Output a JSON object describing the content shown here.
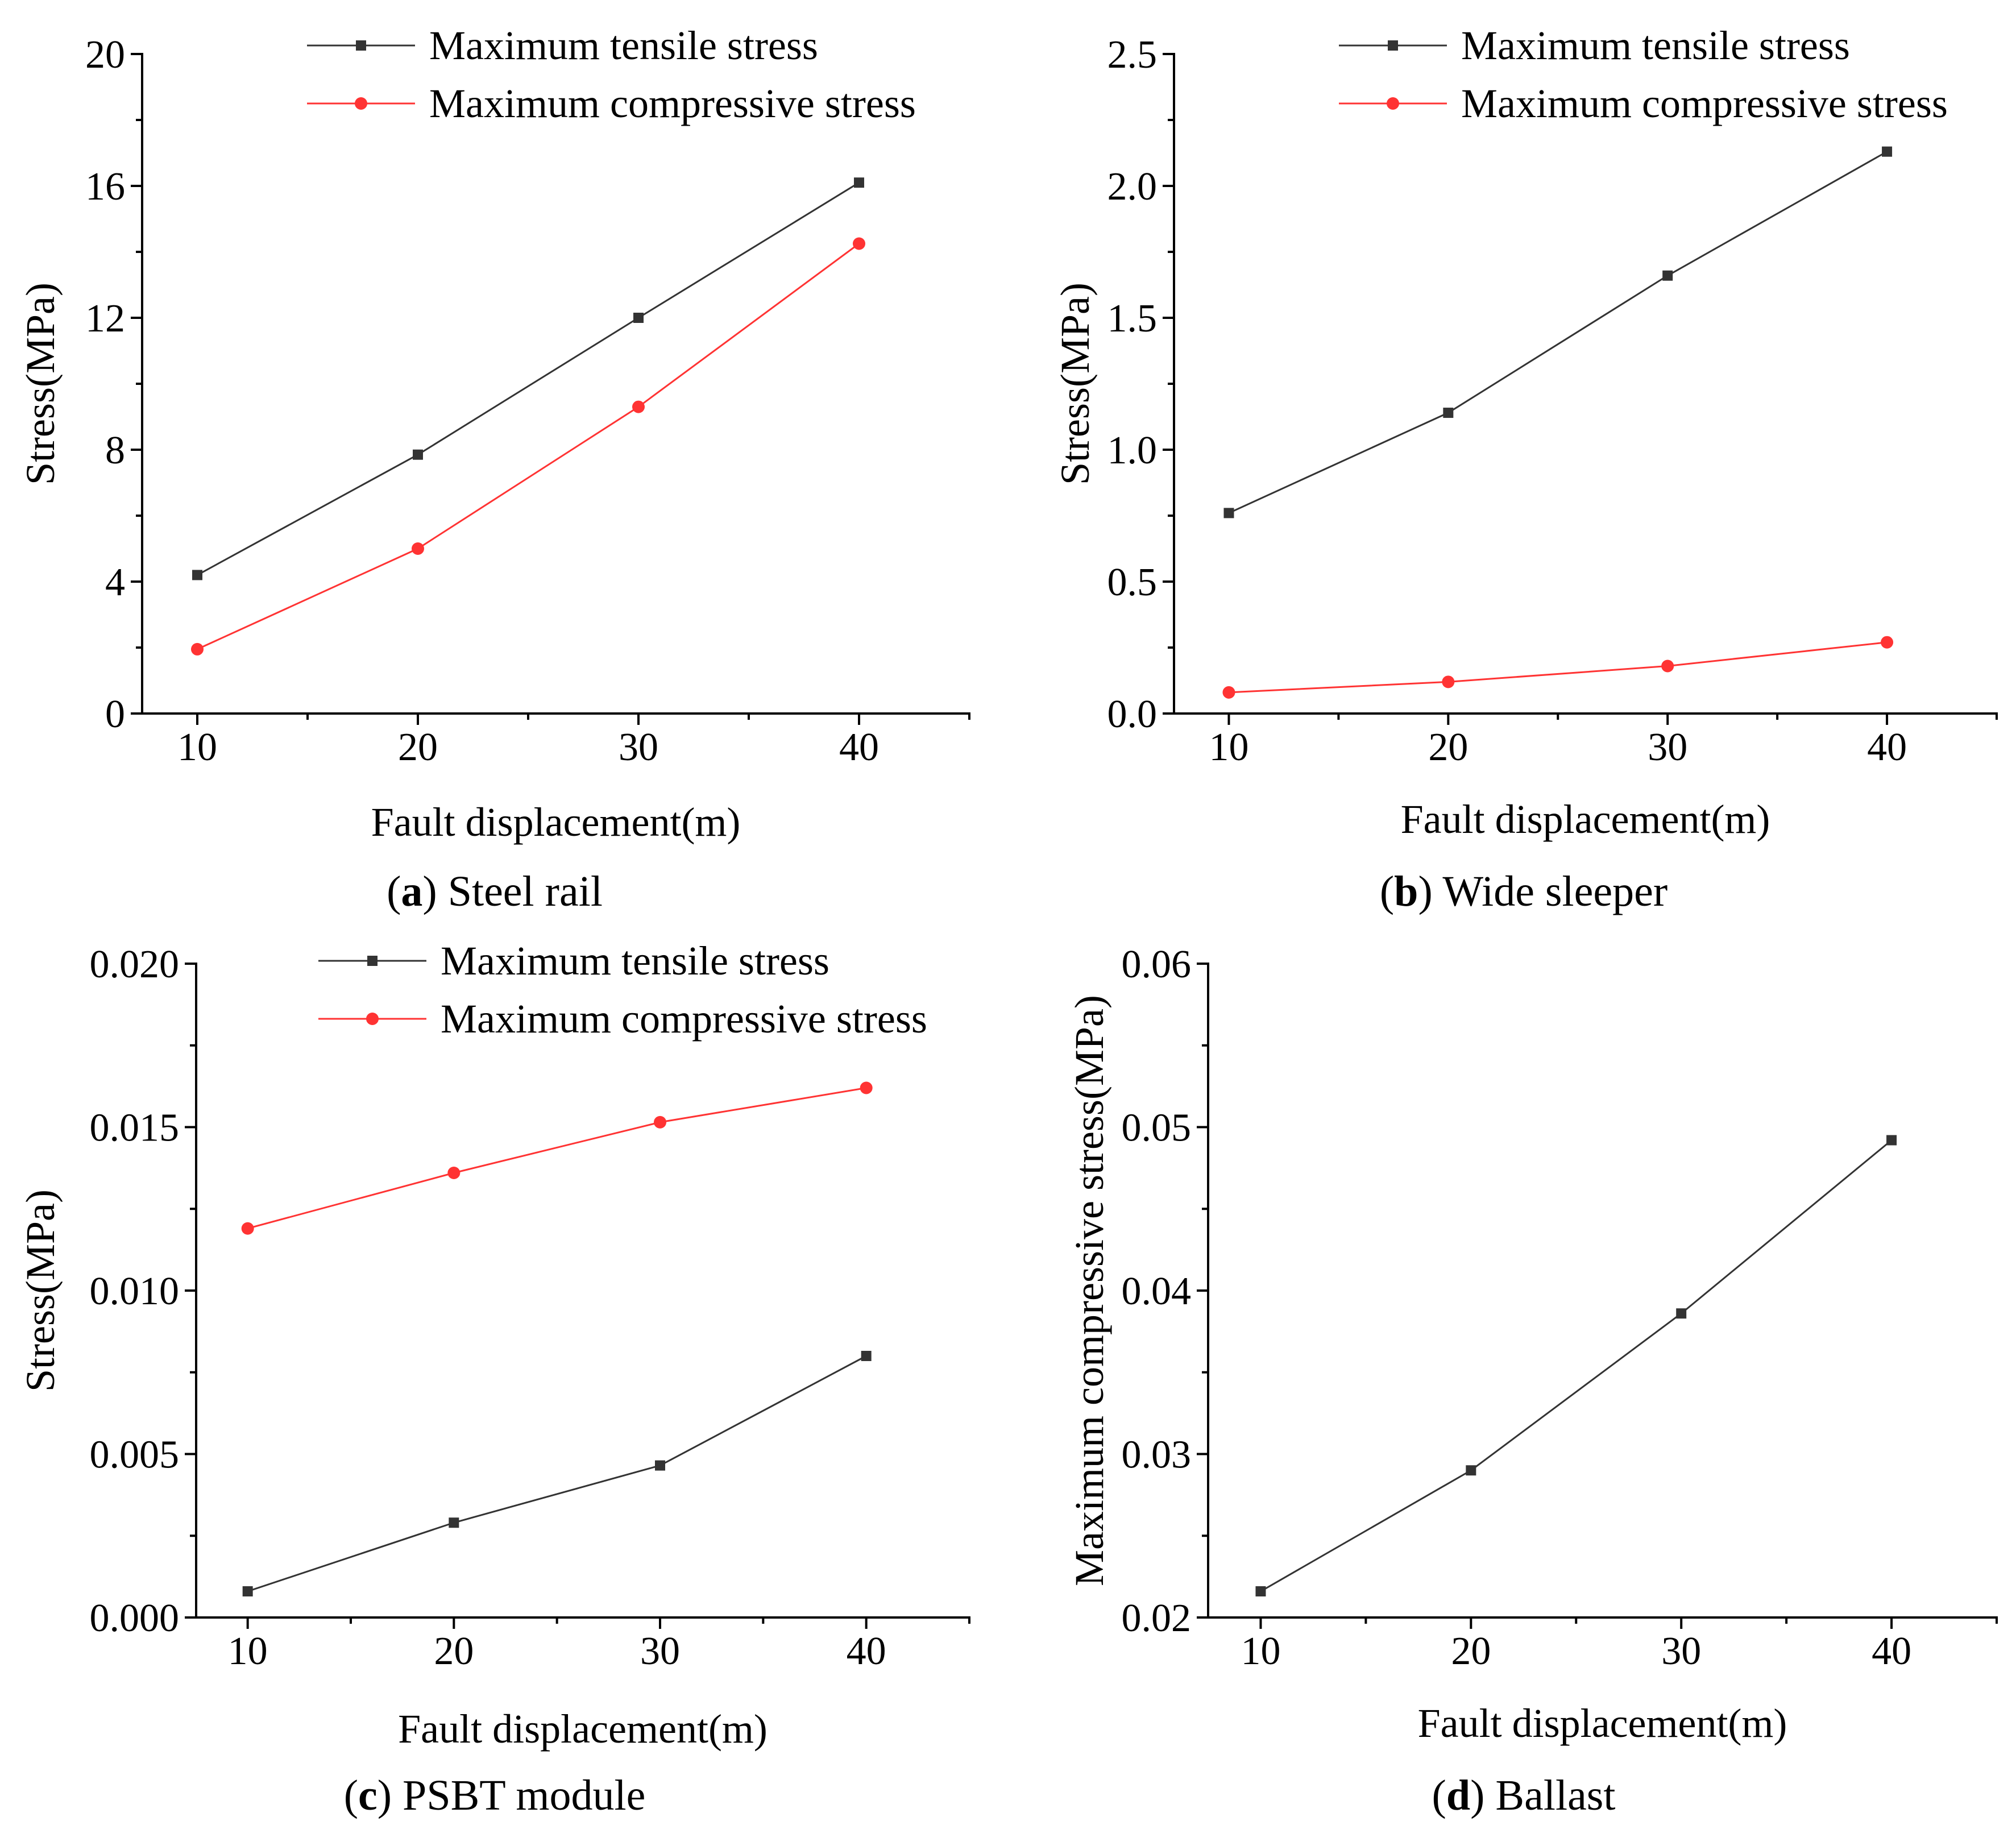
{
  "colors": {
    "tensile": "#333333",
    "compressive": "#ff3333",
    "axis": "#000000"
  },
  "chart_data": [
    {
      "id": "a",
      "type": "line",
      "caption_letter": "a",
      "caption_text": "Steel rail",
      "xlabel": "Fault displacement(m)",
      "ylabel": "Stress(MPa)",
      "xlim": [
        7.5,
        45
      ],
      "ylim": [
        0,
        20
      ],
      "xticks": [
        10,
        20,
        30,
        40
      ],
      "xtick_labels": [
        "10",
        "20",
        "30",
        "40"
      ],
      "xminor": [
        15,
        25,
        35,
        45
      ],
      "yticks": [
        0,
        4,
        8,
        12,
        16,
        20
      ],
      "ytick_labels": [
        "0",
        "4",
        "8",
        "12",
        "16",
        "20"
      ],
      "yminor": [
        2,
        6,
        10,
        14,
        18
      ],
      "legend": "top-right",
      "series": [
        {
          "name": "Maximum tensile stress",
          "marker": "square",
          "color": "#333333",
          "x": [
            10,
            20,
            30,
            40
          ],
          "y": [
            4.2,
            7.85,
            12.0,
            16.1
          ]
        },
        {
          "name": "Maximum compressive stress",
          "marker": "circle",
          "color": "#ff3333",
          "x": [
            10,
            20,
            30,
            40
          ],
          "y": [
            1.95,
            5.0,
            9.3,
            14.25
          ]
        }
      ]
    },
    {
      "id": "b",
      "type": "line",
      "caption_letter": "b",
      "caption_text": "Wide sleeper",
      "xlabel": "Fault displacement(m)",
      "ylabel": "Stress(MPa)",
      "xlim": [
        7.5,
        45
      ],
      "ylim": [
        0,
        2.5
      ],
      "xticks": [
        10,
        20,
        30,
        40
      ],
      "xtick_labels": [
        "10",
        "20",
        "30",
        "40"
      ],
      "xminor": [
        15,
        25,
        35,
        45
      ],
      "yticks": [
        0,
        0.5,
        1.0,
        1.5,
        2.0,
        2.5
      ],
      "ytick_labels": [
        "0.0",
        "0.5",
        "1.0",
        "1.5",
        "2.0",
        "2.5"
      ],
      "yminor": [
        0.25,
        0.75,
        1.25,
        1.75,
        2.25
      ],
      "legend": "top-right",
      "series": [
        {
          "name": "Maximum tensile stress",
          "marker": "square",
          "color": "#333333",
          "x": [
            10,
            20,
            30,
            40
          ],
          "y": [
            0.76,
            1.14,
            1.66,
            2.13
          ]
        },
        {
          "name": "Maximum compressive stress",
          "marker": "circle",
          "color": "#ff3333",
          "x": [
            10,
            20,
            30,
            40
          ],
          "y": [
            0.08,
            0.12,
            0.18,
            0.27
          ]
        }
      ]
    },
    {
      "id": "c",
      "type": "line",
      "caption_letter": "c",
      "caption_text": "PSBT module",
      "xlabel": "Fault displacement(m)",
      "ylabel": "Stress(MPa)",
      "xlim": [
        7.5,
        45
      ],
      "ylim": [
        0,
        0.02
      ],
      "xticks": [
        10,
        20,
        30,
        40
      ],
      "xtick_labels": [
        "10",
        "20",
        "30",
        "40"
      ],
      "xminor": [
        15,
        25,
        35,
        45
      ],
      "yticks": [
        0,
        0.005,
        0.01,
        0.015,
        0.02
      ],
      "ytick_labels": [
        "0.000",
        "0.005",
        "0.010",
        "0.015",
        "0.020"
      ],
      "yminor": [
        0.0025,
        0.0075,
        0.0125,
        0.0175
      ],
      "legend": "top-right",
      "series": [
        {
          "name": "Maximum tensile stress",
          "marker": "square",
          "color": "#333333",
          "x": [
            10,
            20,
            30,
            40
          ],
          "y": [
            0.0008,
            0.0029,
            0.00465,
            0.008
          ]
        },
        {
          "name": "Maximum compressive stress",
          "marker": "circle",
          "color": "#ff3333",
          "x": [
            10,
            20,
            30,
            40
          ],
          "y": [
            0.0119,
            0.0136,
            0.01515,
            0.0162
          ]
        }
      ]
    },
    {
      "id": "d",
      "type": "line",
      "caption_letter": "d",
      "caption_text": "Ballast",
      "xlabel": "Fault displacement(m)",
      "ylabel": "Maximum compressive stress(MPa)",
      "xlim": [
        7.5,
        45
      ],
      "ylim": [
        0.02,
        0.06
      ],
      "xticks": [
        10,
        20,
        30,
        40
      ],
      "xtick_labels": [
        "10",
        "20",
        "30",
        "40"
      ],
      "xminor": [
        15,
        25,
        35,
        45
      ],
      "yticks": [
        0.02,
        0.03,
        0.04,
        0.05,
        0.06
      ],
      "ytick_labels": [
        "0.02",
        "0.03",
        "0.04",
        "0.05",
        "0.06"
      ],
      "yminor": [
        0.025,
        0.035,
        0.045,
        0.055
      ],
      "legend": "none",
      "series": [
        {
          "name": "Maximum compressive stress",
          "marker": "square",
          "color": "#333333",
          "x": [
            10,
            20,
            30,
            40
          ],
          "y": [
            0.0216,
            0.029,
            0.0386,
            0.0492
          ]
        }
      ]
    }
  ]
}
